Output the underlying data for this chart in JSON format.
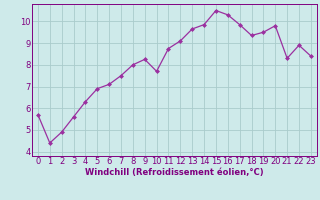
{
  "x": [
    0,
    1,
    2,
    3,
    4,
    5,
    6,
    7,
    8,
    9,
    10,
    11,
    12,
    13,
    14,
    15,
    16,
    17,
    18,
    19,
    20,
    21,
    22,
    23
  ],
  "y": [
    5.7,
    4.4,
    4.9,
    5.6,
    6.3,
    6.9,
    7.1,
    7.5,
    8.0,
    8.25,
    7.7,
    8.75,
    9.1,
    9.65,
    9.85,
    10.5,
    10.3,
    9.85,
    9.35,
    9.5,
    9.8,
    8.3,
    8.9,
    8.4
  ],
  "line_color": "#9b30a0",
  "marker": "D",
  "marker_size": 2.0,
  "xlabel": "Windchill (Refroidissement éolien,°C)",
  "xlabel_fontsize": 6.0,
  "bg_color": "#ceeaea",
  "grid_color": "#aacccc",
  "tick_color": "#800080",
  "spine_color": "#800080",
  "ylim": [
    3.8,
    10.8
  ],
  "xlim": [
    -0.5,
    23.5
  ],
  "yticks": [
    4,
    5,
    6,
    7,
    8,
    9,
    10
  ],
  "xticks": [
    0,
    1,
    2,
    3,
    4,
    5,
    6,
    7,
    8,
    9,
    10,
    11,
    12,
    13,
    14,
    15,
    16,
    17,
    18,
    19,
    20,
    21,
    22,
    23
  ],
  "tick_fontsize": 6.0,
  "linewidth": 0.9
}
